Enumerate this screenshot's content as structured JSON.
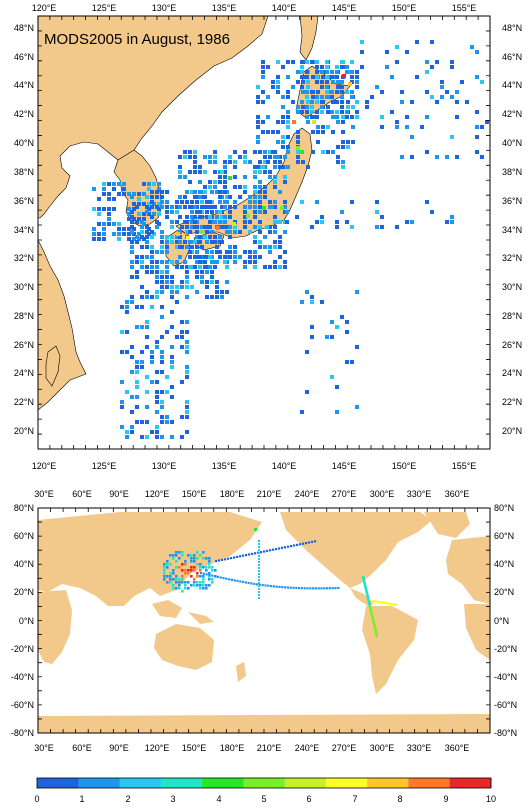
{
  "top_map": {
    "title": "MODS2005 in August, 1986",
    "lon_labels": [
      "120°E",
      "125°E",
      "130°E",
      "135°E",
      "140°E",
      "145°E",
      "150°E",
      "155°E"
    ],
    "lat_labels": [
      "48°N",
      "46°N",
      "44°N",
      "42°N",
      "40°N",
      "38°N",
      "36°N",
      "34°N",
      "32°N",
      "30°N",
      "28°N",
      "26°N",
      "24°N",
      "22°N",
      "20°N"
    ]
  },
  "bottom_map": {
    "lon_labels": [
      "30°E",
      "60°E",
      "90°E",
      "120°E",
      "150°E",
      "180°E",
      "210°E",
      "240°E",
      "270°E",
      "300°E",
      "330°E",
      "360°E"
    ],
    "lat_labels": [
      "80°N",
      "60°N",
      "40°N",
      "20°N",
      "0°N",
      "-20°N",
      "-40°N",
      "-60°N",
      "-80°N"
    ]
  },
  "colorbar": {
    "labels": [
      "0",
      "1",
      "2",
      "3",
      "4",
      "5",
      "6",
      "7",
      "8",
      "9",
      "10"
    ],
    "colors": [
      "#1e64dc",
      "#1e96f0",
      "#28c8f0",
      "#20e6c8",
      "#28e628",
      "#78f028",
      "#c8f028",
      "#ffff28",
      "#ffc828",
      "#ff7828",
      "#e62828"
    ]
  },
  "colors": {
    "land": "#f2c98a",
    "ocean": "#ffffff",
    "frame": "#000000"
  }
}
